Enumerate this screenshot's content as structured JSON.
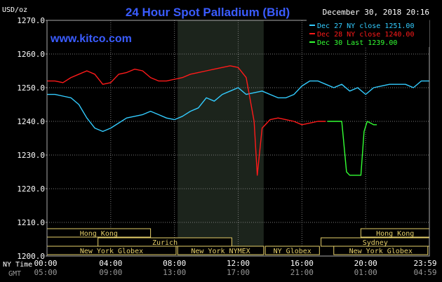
{
  "chart_data": {
    "type": "line",
    "title": "24 Hour Spot Palladium (Bid)",
    "date_stamp": "December 30, 2018 20:16",
    "unit_label": "USD/oz",
    "watermark": "www.kitco.com",
    "ylim": [
      1200,
      1270
    ],
    "y_ticks": [
      "1270.0",
      "1260.0",
      "1250.0",
      "1240.0",
      "1230.0",
      "1220.0",
      "1210.0",
      "1200.0"
    ],
    "y_tick_values": [
      1270,
      1260,
      1250,
      1240,
      1230,
      1220,
      1210,
      1200
    ],
    "xlim": [
      0,
      24
    ],
    "x_tick_values": [
      0,
      4,
      8,
      12,
      16,
      20,
      24
    ],
    "x_ticks_ny": [
      "00:00",
      "04:00",
      "08:00",
      "12:00",
      "16:00",
      "20:00",
      "23:59"
    ],
    "x_ticks_gmt": [
      "05:00",
      "09:00",
      "13:00",
      "17:00",
      "21:00",
      "01:00",
      "04:59"
    ],
    "axis_row_labels": {
      "ny": "NY Time",
      "gmt": "GMT"
    },
    "shaded_region": [
      8.2,
      13.6
    ],
    "grid": true,
    "legend_placement": "top-right",
    "series": [
      {
        "name": "Dec 27 NY close 1251.00",
        "color": "#33ccff",
        "x": [
          0,
          0.5,
          1,
          1.5,
          2,
          2.5,
          3,
          3.5,
          4,
          4.5,
          5,
          5.5,
          6,
          6.5,
          7,
          7.5,
          8,
          8.5,
          9,
          9.5,
          10,
          10.5,
          11,
          11.5,
          12,
          12.5,
          13,
          13.5,
          14,
          14.5,
          15,
          15.5,
          16,
          16.5,
          17,
          17.5,
          18,
          18.5,
          19,
          19.5,
          20,
          20.5,
          21,
          21.5,
          22,
          22.5,
          23,
          23.5,
          23.98
        ],
        "y": [
          1248,
          1248,
          1247.5,
          1247,
          1245,
          1241,
          1238,
          1237,
          1238,
          1239.5,
          1241,
          1241.5,
          1242,
          1243,
          1242,
          1241,
          1240.5,
          1241.5,
          1243,
          1244,
          1247,
          1246,
          1248,
          1249,
          1250,
          1248,
          1248.5,
          1249,
          1248,
          1247,
          1247,
          1248,
          1250.5,
          1252,
          1252,
          1251,
          1250,
          1251,
          1249,
          1250,
          1248,
          1250,
          1250.5,
          1251,
          1251,
          1251,
          1250,
          1252,
          1252
        ]
      },
      {
        "name": "Dec 28 NY close 1240.00",
        "color": "#ff1a1a",
        "x": [
          0,
          0.5,
          1,
          1.5,
          2,
          2.5,
          3,
          3.5,
          4,
          4.5,
          5,
          5.5,
          6,
          6.5,
          7,
          7.5,
          8,
          8.5,
          9,
          9.5,
          10,
          10.5,
          11,
          11.5,
          12,
          12.5,
          13,
          13.2,
          13.5,
          14,
          14.5,
          15,
          15.5,
          16,
          16.5,
          17,
          17.5
        ],
        "y": [
          1252,
          1252,
          1251.5,
          1253,
          1254,
          1255,
          1254,
          1251,
          1251.5,
          1254,
          1254.5,
          1255.5,
          1255,
          1253,
          1252,
          1252,
          1252.5,
          1253,
          1254,
          1254.5,
          1255,
          1255.5,
          1256,
          1256.5,
          1256,
          1253,
          1240,
          1224,
          1238,
          1240.5,
          1241,
          1240.5,
          1240,
          1239,
          1239.5,
          1240,
          1240
        ]
      },
      {
        "name": "Dec 30 Last 1239.00",
        "color": "#33ff33",
        "x": [
          17.6,
          18,
          18.5,
          18.6,
          18.8,
          19,
          19.5,
          19.7,
          19.9,
          20.1,
          20.3,
          20.5,
          20.7
        ],
        "y": [
          1240,
          1240,
          1240,
          1235,
          1225,
          1224,
          1224,
          1224,
          1237,
          1240,
          1239.5,
          1239,
          1239
        ]
      }
    ],
    "sessions": [
      {
        "label": "Hong Kong",
        "row": 0,
        "start": 0,
        "end": 6.5
      },
      {
        "label": "Hong Kong",
        "row": 0,
        "start": 19.7,
        "end": 24
      },
      {
        "label": "Zurich",
        "row": 1,
        "start": 3.2,
        "end": 11.6
      },
      {
        "label": "Sydney",
        "row": 1,
        "start": 17.2,
        "end": 24
      },
      {
        "label": "New York Globex",
        "row": 2,
        "start": 0,
        "end": 8.1
      },
      {
        "label": "New York NYMEX",
        "row": 2,
        "start": 8.2,
        "end": 13.6
      },
      {
        "label": "NY Globex",
        "row": 2,
        "start": 13.7,
        "end": 17.1
      },
      {
        "label": "New York Globex",
        "row": 2,
        "start": 18,
        "end": 23.9
      }
    ]
  }
}
